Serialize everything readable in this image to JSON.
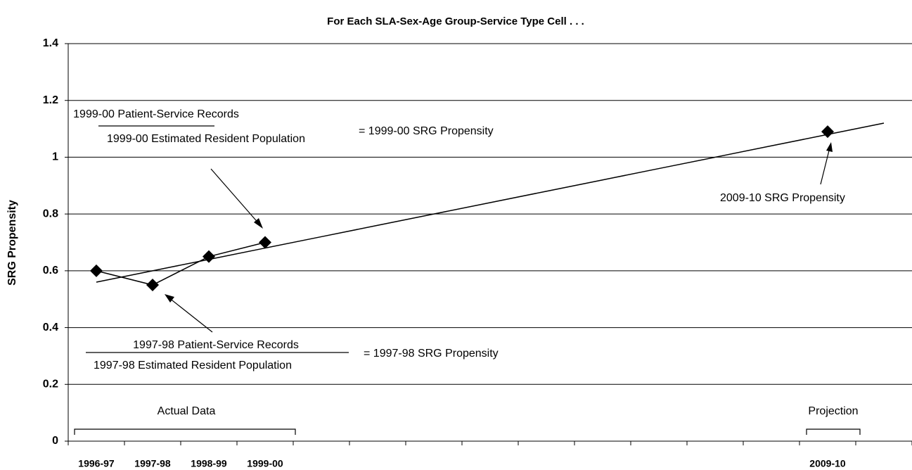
{
  "chart_data": {
    "type": "line",
    "title": "For Each SLA-Sex-Age Group-Service Type Cell . . .",
    "y_label": "SRG Propensity",
    "categories": [
      "1996-97",
      "1997-98",
      "1998-99",
      "1999-00",
      null,
      null,
      null,
      null,
      null,
      null,
      null,
      null,
      null,
      "2009-10",
      null
    ],
    "series": [
      {
        "color": "#000000",
        "marker": "diamond",
        "values": [
          0.6,
          0.55,
          0.65,
          0.7,
          null,
          null,
          null,
          null,
          null,
          null,
          null,
          null,
          null,
          1.09,
          null
        ]
      },
      {
        "color": "#000000",
        "marker": "none",
        "values": [
          0.56,
          0.6,
          0.64,
          0.68,
          0.72,
          0.76,
          0.8,
          0.84,
          0.88,
          0.92,
          0.96,
          1.0,
          1.04,
          1.08,
          1.12
        ]
      }
    ],
    "ylim": [
      0,
      1.4
    ],
    "yticks": [
      0,
      0.2,
      0.4,
      0.6,
      0.8,
      1,
      1.2,
      1.4
    ],
    "grid": true,
    "annotations": {
      "numerator_1999": "1999-00 Patient-Service Records",
      "denominator_1999": "1999-00 Estimated Resident Population",
      "result_1999": "= 1999-00 SRG Propensity",
      "numerator_1997": "1997-98 Patient-Service Records",
      "denominator_1997": "1997-98 Estimated Resident Population",
      "result_1997": "= 1997-98 SRG Propensity",
      "projection_point": "2009-10 SRG Propensity",
      "actual": "Actual Data",
      "projection": "Projection"
    }
  }
}
